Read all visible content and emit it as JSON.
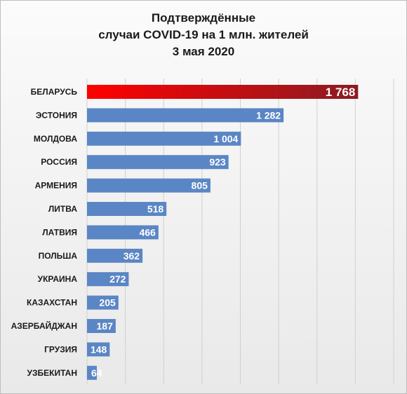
{
  "chart_data": {
    "type": "bar",
    "orientation": "horizontal",
    "title_lines": [
      "Подтверждённые",
      "случаи COVID-19 на 1 млн. жителей",
      "3 мая 2020"
    ],
    "categories": [
      "БЕЛАРУСЬ",
      "ЭСТОНИЯ",
      "МОЛДОВА",
      "РОССИЯ",
      "АРМЕНИЯ",
      "ЛИТВА",
      "ЛАТВИЯ",
      "ПОЛЬША",
      "УКРАИНА",
      "КАЗАХСТАН",
      "АЗЕРБАЙДЖАН",
      "ГРУЗИЯ",
      "УЗБЕКИТАН"
    ],
    "values": [
      1768,
      1282,
      1004,
      923,
      805,
      518,
      466,
      362,
      272,
      205,
      187,
      148,
      64
    ],
    "value_labels": [
      "1 768",
      "1 282",
      "1 004",
      "923",
      "805",
      "518",
      "466",
      "362",
      "272",
      "205",
      "187",
      "148",
      "64"
    ],
    "xlim": [
      0,
      2000
    ],
    "grid": true,
    "highlight_category": "БЕЛАРУСЬ",
    "colors": {
      "bar": "#5b86c5",
      "highlight_start": "#ff0000",
      "highlight_end": "#8b1c22",
      "gridline": "#d0d0d0",
      "label_text": "#ffffff"
    }
  }
}
